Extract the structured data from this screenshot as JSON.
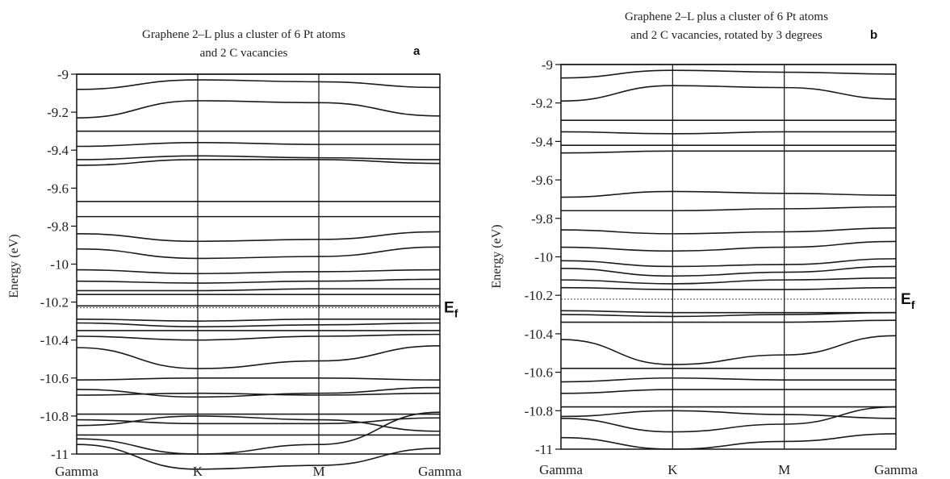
{
  "chart_data": [
    {
      "type": "line",
      "panel_label": "a",
      "title_lines": [
        "Graphene 2–L plus a cluster of 6 Pt atoms",
        "and 2 C vacancies"
      ],
      "ylabel": "Energy (eV)",
      "ylim": [
        -11,
        -9
      ],
      "yticks": [
        -9,
        -9.2,
        -9.4,
        -9.6,
        -9.8,
        -10,
        -10.2,
        -10.4,
        -10.6,
        -10.8,
        -11
      ],
      "ytick_labels": [
        "-9",
        "-9.2",
        "-9.4",
        "-9.6",
        "-9.8",
        "-10",
        "-10.2",
        "-10.4",
        "-10.6",
        "-10.8",
        "-11"
      ],
      "x_categories": [
        "Gamma",
        "K",
        "M",
        "Gamma"
      ],
      "fermi_level": -10.23,
      "fermi_label": "E",
      "fermi_sub": "f",
      "series": [
        {
          "values": [
            -9.0,
            -9.0,
            -9.0,
            -9.0
          ]
        },
        {
          "values": [
            -9.08,
            -9.03,
            -9.04,
            -9.07
          ]
        },
        {
          "values": [
            -9.23,
            -9.14,
            -9.15,
            -9.22
          ]
        },
        {
          "values": [
            -9.3,
            -9.3,
            -9.3,
            -9.3
          ]
        },
        {
          "values": [
            -9.38,
            -9.36,
            -9.37,
            -9.37
          ]
        },
        {
          "values": [
            -9.45,
            -9.43,
            -9.44,
            -9.45
          ]
        },
        {
          "values": [
            -9.48,
            -9.45,
            -9.45,
            -9.47
          ]
        },
        {
          "values": [
            -9.67,
            -9.67,
            -9.67,
            -9.67
          ]
        },
        {
          "values": [
            -9.75,
            -9.75,
            -9.75,
            -9.75
          ]
        },
        {
          "values": [
            -9.84,
            -9.88,
            -9.87,
            -9.83
          ]
        },
        {
          "values": [
            -9.92,
            -9.97,
            -9.96,
            -9.91
          ]
        },
        {
          "values": [
            -10.03,
            -10.05,
            -10.04,
            -10.03
          ]
        },
        {
          "values": [
            -10.09,
            -10.1,
            -10.09,
            -10.08
          ]
        },
        {
          "values": [
            -10.14,
            -10.14,
            -10.13,
            -10.13
          ]
        },
        {
          "values": [
            -10.16,
            -10.16,
            -10.16,
            -10.16
          ]
        },
        {
          "values": [
            -10.22,
            -10.22,
            -10.22,
            -10.22
          ]
        },
        {
          "values": [
            -10.29,
            -10.3,
            -10.29,
            -10.29
          ]
        },
        {
          "values": [
            -10.31,
            -10.33,
            -10.32,
            -10.31
          ]
        },
        {
          "values": [
            -10.35,
            -10.35,
            -10.35,
            -10.35
          ]
        },
        {
          "values": [
            -10.38,
            -10.4,
            -10.38,
            -10.37
          ]
        },
        {
          "values": [
            -10.44,
            -10.55,
            -10.51,
            -10.43
          ]
        },
        {
          "values": [
            -10.61,
            -10.6,
            -10.6,
            -10.61
          ]
        },
        {
          "values": [
            -10.66,
            -10.7,
            -10.68,
            -10.65
          ]
        },
        {
          "values": [
            -10.69,
            -10.68,
            -10.69,
            -10.68
          ]
        },
        {
          "values": [
            -10.79,
            -10.79,
            -10.79,
            -10.79
          ]
        },
        {
          "values": [
            -10.82,
            -10.84,
            -10.84,
            -10.81
          ]
        },
        {
          "values": [
            -10.85,
            -10.8,
            -10.82,
            -10.88
          ]
        },
        {
          "values": [
            -10.9,
            -10.9,
            -10.9,
            -10.9
          ]
        },
        {
          "values": [
            -10.92,
            -11.0,
            -10.95,
            -10.78
          ]
        },
        {
          "values": [
            -10.95,
            -11.08,
            -11.06,
            -10.97
          ]
        }
      ]
    },
    {
      "type": "line",
      "panel_label": "b",
      "title_lines": [
        "Graphene 2–L plus a cluster of 6 Pt atoms",
        "and 2 C vacancies, rotated by 3 degrees"
      ],
      "ylabel": "Energy (eV)",
      "ylim": [
        -11,
        -9
      ],
      "yticks": [
        -9,
        -9.2,
        -9.4,
        -9.6,
        -9.8,
        -10,
        -10.2,
        -10.4,
        -10.6,
        -10.8,
        -11
      ],
      "ytick_labels": [
        "-9",
        "-9.2",
        "-9.4",
        "-9.6",
        "-9.8",
        "-10",
        "-10.2",
        "-10.4",
        "-10.6",
        "-10.8",
        "-11"
      ],
      "x_categories": [
        "Gamma",
        "K",
        "M",
        "Gamma"
      ],
      "fermi_level": -10.22,
      "fermi_label": "E",
      "fermi_sub": "f",
      "series": [
        {
          "values": [
            -9.0,
            -9.0,
            -9.0,
            -9.0
          ]
        },
        {
          "values": [
            -9.07,
            -9.03,
            -9.04,
            -9.05
          ]
        },
        {
          "values": [
            -9.19,
            -9.11,
            -9.12,
            -9.18
          ]
        },
        {
          "values": [
            -9.29,
            -9.29,
            -9.29,
            -9.29
          ]
        },
        {
          "values": [
            -9.35,
            -9.36,
            -9.35,
            -9.35
          ]
        },
        {
          "values": [
            -9.42,
            -9.42,
            -9.42,
            -9.42
          ]
        },
        {
          "values": [
            -9.46,
            -9.45,
            -9.45,
            -9.45
          ]
        },
        {
          "values": [
            -9.69,
            -9.66,
            -9.67,
            -9.68
          ]
        },
        {
          "values": [
            -9.76,
            -9.76,
            -9.75,
            -9.74
          ]
        },
        {
          "values": [
            -9.86,
            -9.88,
            -9.87,
            -9.85
          ]
        },
        {
          "values": [
            -9.95,
            -9.97,
            -9.95,
            -9.92
          ]
        },
        {
          "values": [
            -10.02,
            -10.05,
            -10.04,
            -10.01
          ]
        },
        {
          "values": [
            -10.06,
            -10.1,
            -10.08,
            -10.05
          ]
        },
        {
          "values": [
            -10.12,
            -10.14,
            -10.12,
            -10.11
          ]
        },
        {
          "values": [
            -10.16,
            -10.17,
            -10.17,
            -10.16
          ]
        },
        {
          "values": [
            -10.28,
            -10.29,
            -10.29,
            -10.29
          ]
        },
        {
          "values": [
            -10.3,
            -10.31,
            -10.3,
            -10.29
          ]
        },
        {
          "values": [
            -10.34,
            -10.34,
            -10.34,
            -10.33
          ]
        },
        {
          "values": [
            -10.43,
            -10.56,
            -10.51,
            -10.41
          ]
        },
        {
          "values": [
            -10.58,
            -10.58,
            -10.58,
            -10.58
          ]
        },
        {
          "values": [
            -10.65,
            -10.63,
            -10.64,
            -10.64
          ]
        },
        {
          "values": [
            -10.71,
            -10.69,
            -10.69,
            -10.69
          ]
        },
        {
          "values": [
            -10.78,
            -10.78,
            -10.78,
            -10.78
          ]
        },
        {
          "values": [
            -10.83,
            -10.8,
            -10.82,
            -10.84
          ]
        },
        {
          "values": [
            -10.84,
            -10.91,
            -10.87,
            -10.78
          ]
        },
        {
          "values": [
            -10.94,
            -11.0,
            -10.96,
            -10.92
          ]
        }
      ]
    }
  ]
}
